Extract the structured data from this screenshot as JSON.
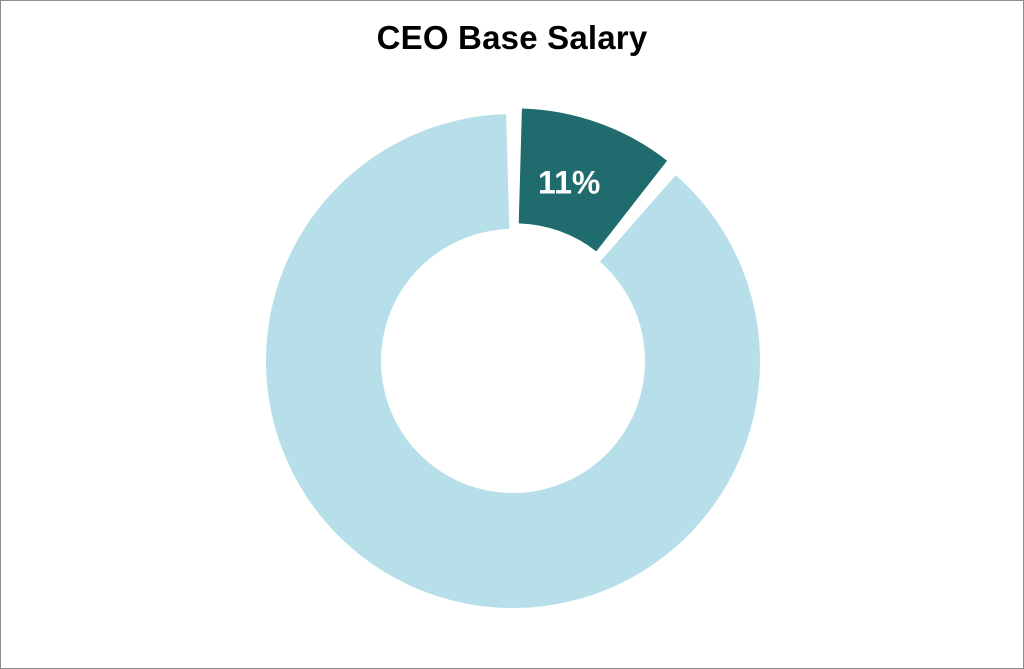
{
  "chart_data": {
    "type": "pie",
    "variant": "donut",
    "title": "CEO Base Salary",
    "slices": [
      {
        "value": 11,
        "label": "11%",
        "color": "#1f6b6e",
        "exploded": true
      },
      {
        "value": 89,
        "label": "",
        "color": "#b7dfe9",
        "exploded": false
      }
    ],
    "label_color": "#ffffff",
    "legend": "none"
  }
}
